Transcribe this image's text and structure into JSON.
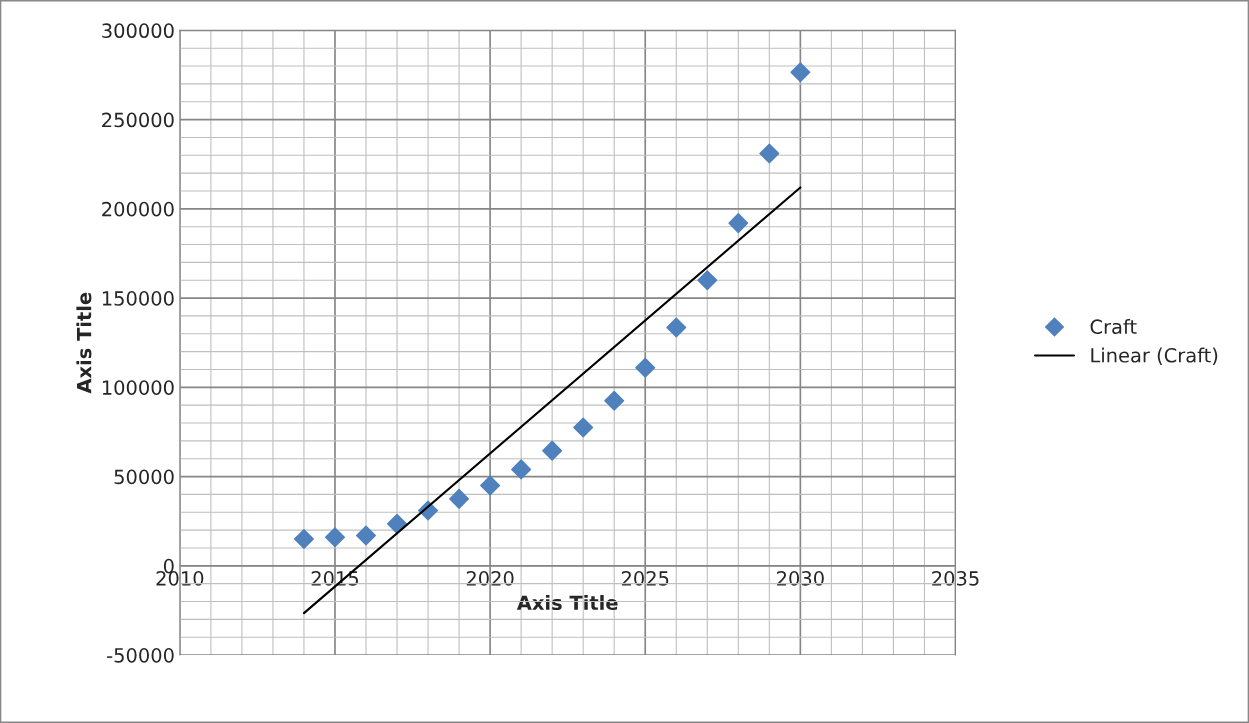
{
  "chart_data": {
    "type": "scatter",
    "xlabel": "Axis Title",
    "ylabel": "Axis Title",
    "x": [
      2014,
      2015,
      2016,
      2017,
      2018,
      2019,
      2020,
      2021,
      2022,
      2023,
      2024,
      2025,
      2026,
      2027,
      2028,
      2029,
      2030
    ],
    "series": [
      {
        "name": "Craft",
        "marker": "diamond",
        "color": "#4f81bd",
        "values": [
          15000,
          16000,
          17000,
          23500,
          31000,
          37500,
          45000,
          54000,
          64500,
          77500,
          92500,
          111000,
          133500,
          160000,
          192000,
          231000,
          276500
        ]
      },
      {
        "name": "Linear (Craft)",
        "type": "line",
        "color": "#000000",
        "line_style": "solid",
        "marker": "none",
        "x": [
          2014,
          2030
        ],
        "values": [
          -26500,
          212000
        ]
      }
    ],
    "xlim": [
      2010,
      2035
    ],
    "xticks": [
      2010,
      2015,
      2020,
      2025,
      2030,
      2035
    ],
    "ylim": [
      -50000,
      300000
    ],
    "yticks": [
      -50000,
      0,
      50000,
      100000,
      150000,
      200000,
      250000,
      300000
    ],
    "grid": true,
    "legend": "right"
  }
}
